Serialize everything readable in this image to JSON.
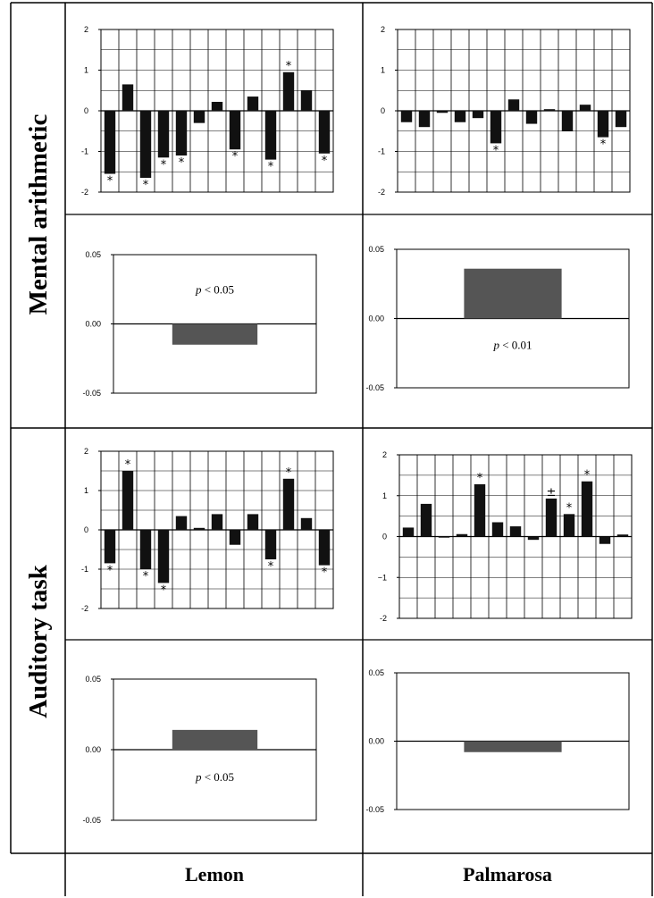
{
  "row_labels": [
    "Mental arithmetic",
    "Auditory task"
  ],
  "column_labels": [
    "Lemon",
    "Palmarosa"
  ],
  "colors": {
    "bar": "#111111",
    "mean_bar": "#555555",
    "grid": "#000000"
  },
  "chart_data": [
    {
      "id": "ma-lemon-detail",
      "type": "bar",
      "row": "Mental arithmetic",
      "column": "Lemon",
      "ylim": [
        -2,
        2
      ],
      "yticks": [
        "2",
        "1",
        "0",
        "-1",
        "-2"
      ],
      "grid": true,
      "values": [
        -1.55,
        0.65,
        -1.65,
        -1.15,
        -1.1,
        -0.3,
        0.22,
        -0.95,
        0.35,
        -1.2,
        0.95,
        0.5,
        -1.05
      ],
      "significance": [
        "*",
        "",
        "*",
        "*",
        "*",
        "",
        "",
        "*",
        "",
        "*",
        "*",
        "",
        "*"
      ]
    },
    {
      "id": "ma-palmarosa-detail",
      "type": "bar",
      "row": "Mental arithmetic",
      "column": "Palmarosa",
      "ylim": [
        -2,
        2
      ],
      "yticks": [
        "2",
        "1",
        "0",
        "-1",
        "-2"
      ],
      "grid": true,
      "values": [
        -0.28,
        -0.4,
        -0.05,
        -0.28,
        -0.18,
        -0.8,
        0.28,
        -0.32,
        0.04,
        -0.5,
        0.15,
        -0.65,
        -0.4
      ],
      "significance": [
        "",
        "",
        "",
        "",
        "",
        "*",
        "",
        "",
        "",
        "",
        "",
        "*",
        ""
      ]
    },
    {
      "id": "ma-lemon-mean",
      "type": "bar",
      "row": "Mental arithmetic",
      "column": "Lemon",
      "ylim": [
        -0.05,
        0.05
      ],
      "yticks": [
        "0.05",
        "0.00",
        "-0.05"
      ],
      "grid": false,
      "values": [
        -0.015
      ],
      "annotation": {
        "prefix": "p",
        "text": " < 0.05"
      }
    },
    {
      "id": "ma-palmarosa-mean",
      "type": "bar",
      "row": "Mental arithmetic",
      "column": "Palmarosa",
      "ylim": [
        -0.05,
        0.05
      ],
      "yticks": [
        "0.05",
        "0.00",
        "-0.05"
      ],
      "grid": false,
      "values": [
        0.036
      ],
      "annotation": {
        "prefix": "p",
        "text": " < 0.01"
      }
    },
    {
      "id": "at-lemon-detail",
      "type": "bar",
      "row": "Auditory task",
      "column": "Lemon",
      "ylim": [
        -2,
        2
      ],
      "yticks": [
        "2",
        "1",
        "0",
        "-1",
        "-2"
      ],
      "grid": true,
      "values": [
        -0.85,
        1.5,
        -1.0,
        -1.35,
        0.35,
        0.05,
        0.4,
        -0.38,
        0.4,
        -0.75,
        1.3,
        0.3,
        -0.9
      ],
      "significance": [
        "*",
        "*",
        "*",
        "*",
        "",
        "",
        "",
        "",
        "",
        "*",
        "*",
        "",
        "*"
      ]
    },
    {
      "id": "at-palmarosa-detail",
      "type": "bar",
      "row": "Auditory task",
      "column": "Palmarosa",
      "ylim": [
        -2,
        2
      ],
      "yticks": [
        "2",
        "1",
        "0",
        "−1",
        "-2"
      ],
      "grid": true,
      "values": [
        0.22,
        0.8,
        -0.02,
        0.06,
        1.28,
        0.35,
        0.25,
        -0.08,
        0.93,
        0.55,
        1.35,
        -0.18,
        0.05
      ],
      "significance": [
        "",
        "",
        "",
        "",
        "*",
        "",
        "",
        "",
        "±",
        "*",
        "*",
        "",
        ""
      ]
    },
    {
      "id": "at-lemon-mean",
      "type": "bar",
      "row": "Auditory task",
      "column": "Lemon",
      "ylim": [
        -0.05,
        0.05
      ],
      "yticks": [
        "0.05",
        "0.00",
        "-0.05"
      ],
      "grid": false,
      "values": [
        0.014
      ],
      "annotation": {
        "prefix": "p",
        "text": " < 0.05"
      }
    },
    {
      "id": "at-palmarosa-mean",
      "type": "bar",
      "row": "Auditory task",
      "column": "Palmarosa",
      "ylim": [
        -0.05,
        0.05
      ],
      "yticks": [
        "0.05",
        "0.00",
        "-0.05"
      ],
      "grid": false,
      "values": [
        -0.008
      ]
    }
  ]
}
